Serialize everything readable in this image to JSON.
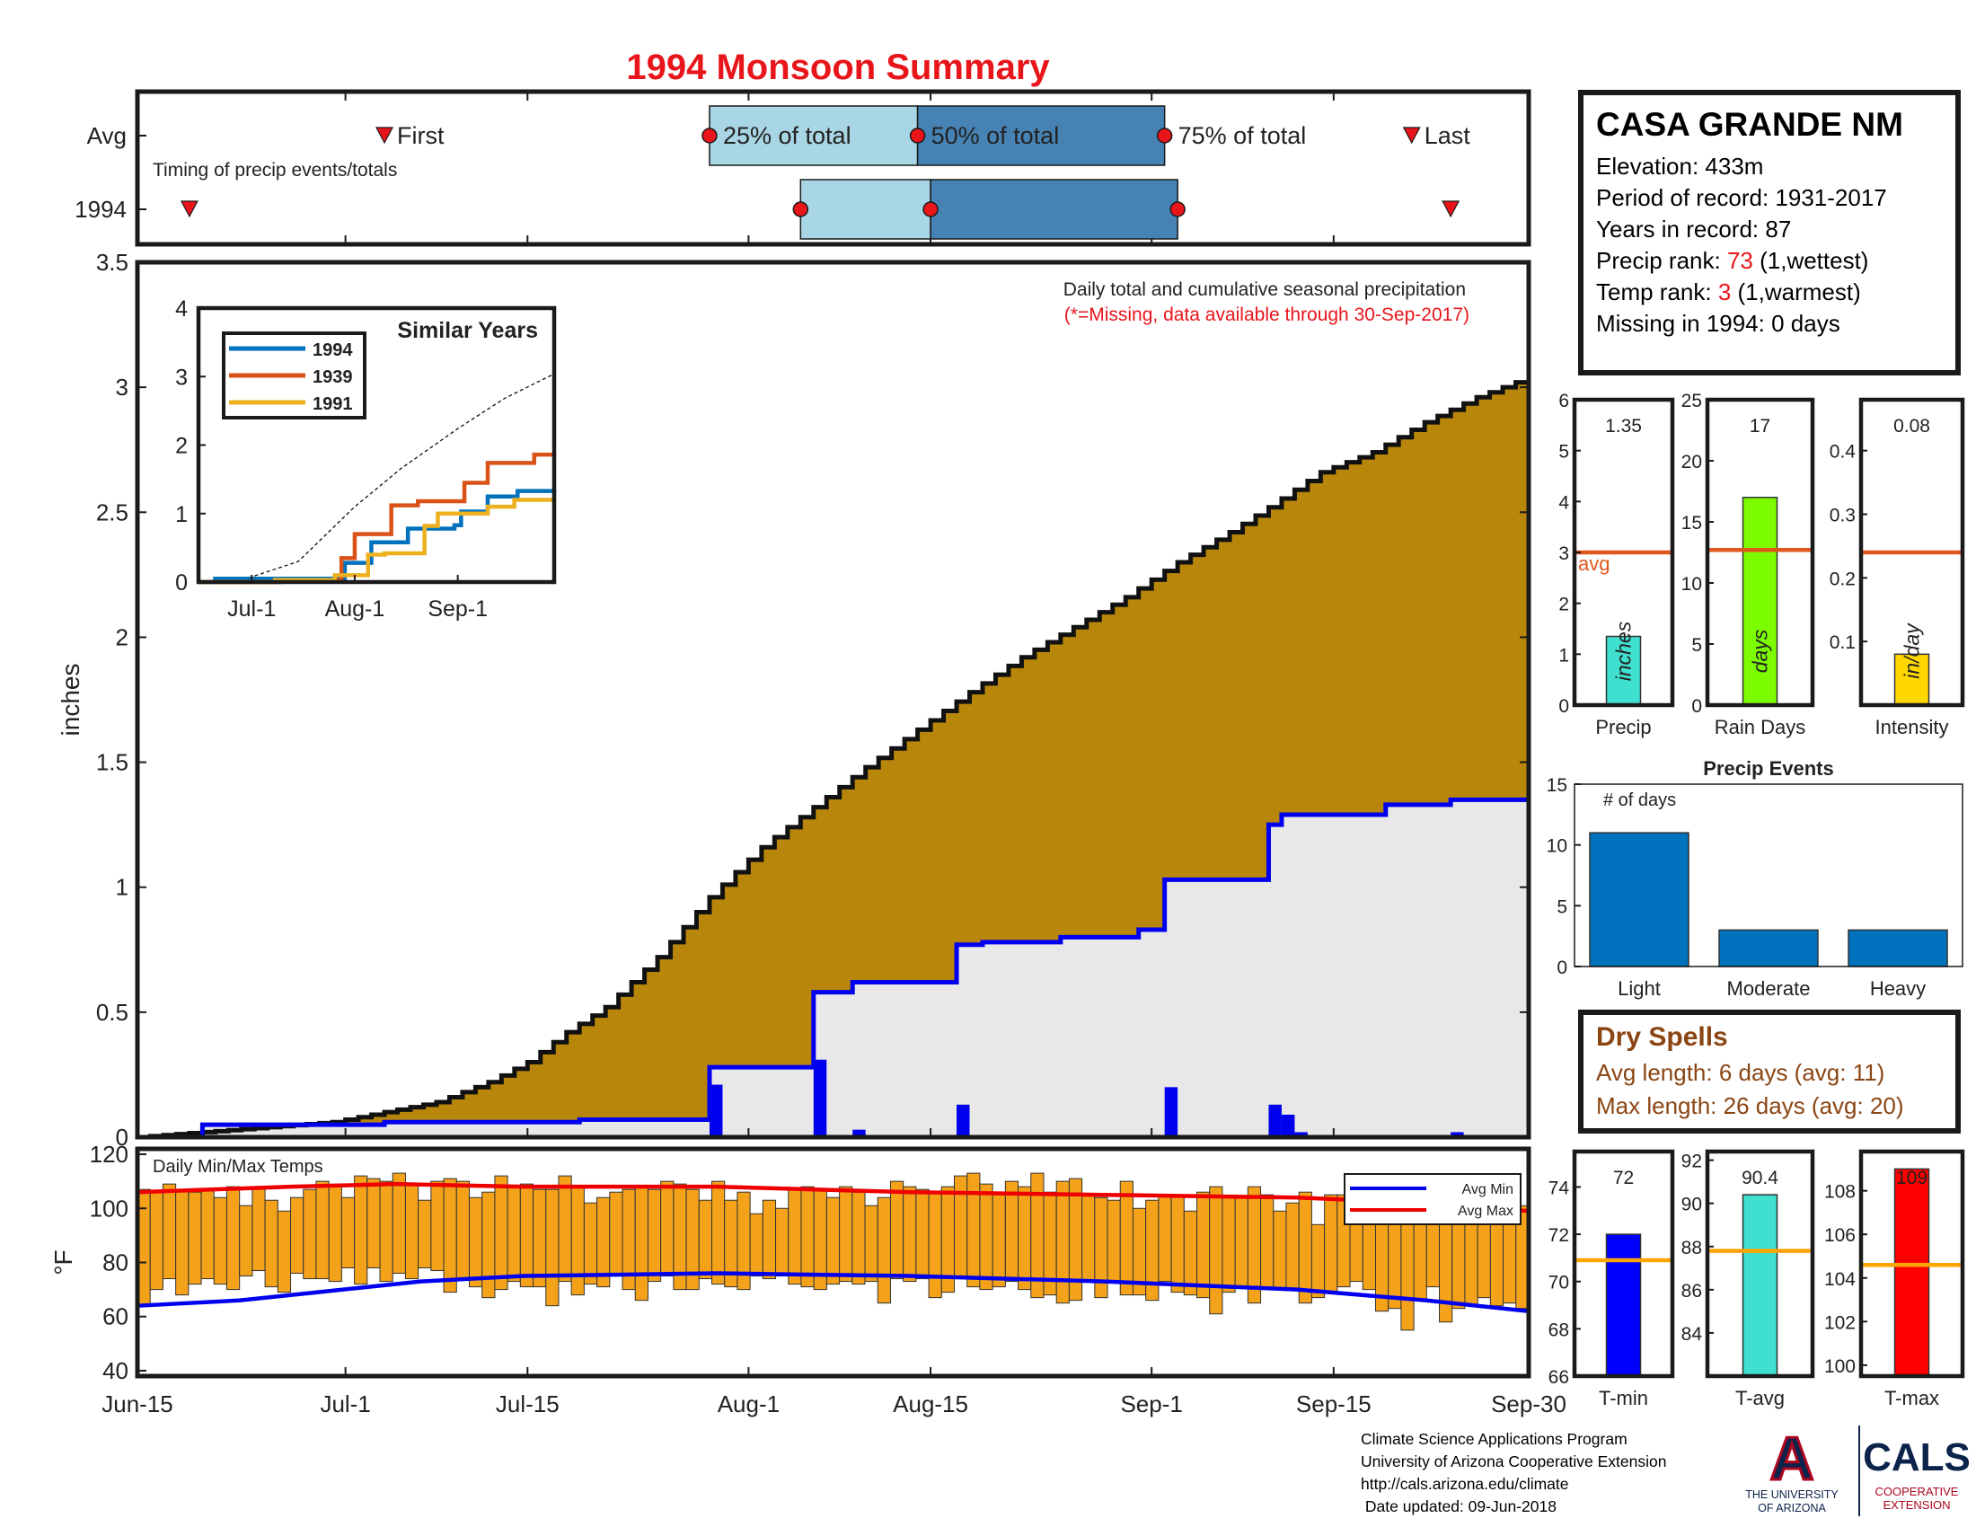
{
  "title": "1994 Monsoon Summary",
  "timing": {
    "row_labels": [
      "Avg",
      "1994"
    ],
    "subtitle": "Timing of precip events/totals",
    "first_label": "First",
    "last_label": "Last",
    "q25_label": "25% of total",
    "q50_label": "50% of total",
    "q75_label": "75% of total",
    "avg": {
      "first": "2004-07-04",
      "q25": "2004-07-29",
      "q50": "2004-08-14",
      "q75": "2004-09-02",
      "last": "2004-09-21"
    },
    "year": {
      "first": "2004-06-19",
      "q25": "2004-08-05",
      "q50": "2004-08-15",
      "q75": "2004-09-03",
      "last": "2004-09-24"
    },
    "color_early": "#a9d6e5",
    "color_late": "#4682b4",
    "marker_color": "#e8151b"
  },
  "site": {
    "name": "CASA GRANDE NM",
    "elevation": "Elevation: 433m",
    "period": "Period of record: 1931-2017",
    "years": "Years in record: 87",
    "precip_rank_prefix": "Precip rank: ",
    "precip_rank": "73",
    "precip_rank_suffix": " (1,wettest)",
    "temp_rank_prefix": "Temp rank: ",
    "temp_rank": "3",
    "temp_rank_suffix": " (1,warmest)",
    "missing": "Missing in 1994: 0 days"
  },
  "dry_spells": {
    "title": "Dry Spells",
    "avg": "Avg length: 6 days (avg: 11)",
    "max": "Max length: 26 days (avg: 20)"
  },
  "footer": {
    "line1": "Climate Science Applications Program",
    "line2": "University of Arizona Cooperative Extension",
    "line3": "http://cals.arizona.edu/climate",
    "line4": " Date updated: 09-Jun-2018"
  },
  "logos": {
    "ua_letter": "A",
    "ua_line1": "THE UNIVERSITY",
    "ua_line2": "OF ARIZONA",
    "cals_name": "CALS",
    "cals_line1": "COOPERATIVE",
    "cals_line2": "EXTENSION"
  },
  "chart_data": [
    {
      "id": "precip",
      "type": "area",
      "title": "Daily total and cumulative seasonal precipitation",
      "note": "(*=Missing, data available through 30-Sep-2017)",
      "ylabel": "inches",
      "ylim": [
        0,
        3.5
      ],
      "yticks": [
        0,
        0.5,
        1,
        1.5,
        2,
        2.5,
        3,
        3.5
      ],
      "xlim": [
        "2004-06-15",
        "2004-09-30"
      ],
      "xticks": [
        "2004-06-15",
        "2004-07-01",
        "2004-07-15",
        "2004-08-01",
        "2004-08-15",
        "2004-09-01",
        "2004-09-15",
        "2004-09-30"
      ],
      "xtick_labels": [
        "Jun-15",
        "Jul-1",
        "Jul-15",
        "Aug-1",
        "Aug-15",
        "Sep-1",
        "Sep-15",
        "Sep-30"
      ],
      "avg_cumulative": [
        [
          "06-15",
          0.0
        ],
        [
          "06-20",
          0.02
        ],
        [
          "06-25",
          0.04
        ],
        [
          "06-30",
          0.06
        ],
        [
          "07-04",
          0.1
        ],
        [
          "07-08",
          0.14
        ],
        [
          "07-12",
          0.22
        ],
        [
          "07-15",
          0.3
        ],
        [
          "07-18",
          0.42
        ],
        [
          "07-21",
          0.52
        ],
        [
          "07-25",
          0.72
        ],
        [
          "07-29",
          0.96
        ],
        [
          "08-02",
          1.16
        ],
        [
          "08-06",
          1.32
        ],
        [
          "08-10",
          1.48
        ],
        [
          "08-14",
          1.63
        ],
        [
          "08-18",
          1.78
        ],
        [
          "08-22",
          1.92
        ],
        [
          "08-26",
          2.04
        ],
        [
          "08-30",
          2.16
        ],
        [
          "09-03",
          2.3
        ],
        [
          "09-07",
          2.42
        ],
        [
          "09-10",
          2.52
        ],
        [
          "09-14",
          2.66
        ],
        [
          "09-18",
          2.74
        ],
        [
          "09-22",
          2.86
        ],
        [
          "09-26",
          2.96
        ],
        [
          "09-30",
          3.04
        ]
      ],
      "series": [
        {
          "name": "1994",
          "color": "#0000ee",
          "cumulative_steps": [
            [
              "06-15",
              0.0
            ],
            [
              "06-20",
              0.05
            ],
            [
              "07-04",
              0.06
            ],
            [
              "07-19",
              0.07
            ],
            [
              "07-29",
              0.28
            ],
            [
              "08-06",
              0.58
            ],
            [
              "08-09",
              0.62
            ],
            [
              "08-17",
              0.77
            ],
            [
              "08-19",
              0.78
            ],
            [
              "08-25",
              0.8
            ],
            [
              "08-31",
              0.83
            ],
            [
              "09-02",
              1.03
            ],
            [
              "09-10",
              1.25
            ],
            [
              "09-11",
              1.29
            ],
            [
              "09-19",
              1.33
            ],
            [
              "09-24",
              1.35
            ]
          ]
        },
        {
          "name": "Daily precip",
          "color": "#0000ee",
          "daily": [
            [
              "07-29",
              0.21
            ],
            [
              "08-06",
              0.31
            ],
            [
              "08-09",
              0.03
            ],
            [
              "08-17",
              0.13
            ],
            [
              "09-02",
              0.2
            ],
            [
              "09-10",
              0.13
            ],
            [
              "09-11",
              0.09
            ],
            [
              "09-12",
              0.02
            ],
            [
              "09-24",
              0.02
            ]
          ]
        }
      ]
    },
    {
      "id": "similar",
      "type": "line",
      "title": "Similar Years",
      "ylim": [
        0,
        4
      ],
      "yticks": [
        0,
        1,
        2,
        3,
        4
      ],
      "xtick_labels": [
        "Jul-1",
        "Aug-1",
        "Sep-1"
      ],
      "series": [
        {
          "name": "1994",
          "color": "#0072bd",
          "values": [
            [
              "06-15",
              0.0
            ],
            [
              "06-20",
              0.05
            ],
            [
              "07-29",
              0.28
            ],
            [
              "08-06",
              0.58
            ],
            [
              "08-17",
              0.78
            ],
            [
              "08-31",
              0.83
            ],
            [
              "09-02",
              1.03
            ],
            [
              "09-10",
              1.25
            ],
            [
              "09-19",
              1.33
            ],
            [
              "09-30",
              1.35
            ]
          ]
        },
        {
          "name": "1939",
          "color": "#d95319",
          "values": [
            [
              "06-15",
              0.0
            ],
            [
              "07-10",
              0.03
            ],
            [
              "07-28",
              0.35
            ],
            [
              "08-01",
              0.7
            ],
            [
              "08-12",
              1.12
            ],
            [
              "08-20",
              1.18
            ],
            [
              "09-03",
              1.45
            ],
            [
              "09-10",
              1.74
            ],
            [
              "09-24",
              1.86
            ],
            [
              "09-30",
              1.88
            ]
          ]
        },
        {
          "name": "1991",
          "color": "#edb120",
          "values": [
            [
              "06-15",
              0.0
            ],
            [
              "07-08",
              0.03
            ],
            [
              "07-26",
              0.1
            ],
            [
              "08-05",
              0.4
            ],
            [
              "08-10",
              0.42
            ],
            [
              "08-22",
              0.82
            ],
            [
              "08-26",
              1.0
            ],
            [
              "09-10",
              1.1
            ],
            [
              "09-18",
              1.2
            ],
            [
              "09-30",
              1.22
            ]
          ]
        }
      ],
      "avg_line": [
        [
          "06-15",
          0.0
        ],
        [
          "06-30",
          0.06
        ],
        [
          "07-15",
          0.3
        ],
        [
          "08-01",
          1.1
        ],
        [
          "08-15",
          1.66
        ],
        [
          "09-01",
          2.24
        ],
        [
          "09-15",
          2.68
        ],
        [
          "09-30",
          3.04
        ]
      ]
    },
    {
      "id": "temps",
      "type": "bar",
      "title": "Daily Min/Max Temps",
      "ylabel": "°F",
      "ylim": [
        38,
        122
      ],
      "yticks": [
        40,
        60,
        80,
        100,
        120
      ],
      "bar_color": "#f5a21b",
      "legend": [
        {
          "name": "Avg Min",
          "color": "#0000ee"
        },
        {
          "name": "Avg Max",
          "color": "#ee0000"
        }
      ],
      "daily_max": [
        107,
        106,
        109,
        107,
        106,
        107,
        104,
        108,
        101,
        108,
        103,
        99,
        104,
        107,
        110,
        108,
        104,
        112,
        111,
        110,
        113,
        109,
        103,
        110,
        111,
        110,
        104,
        106,
        112,
        108,
        109,
        107,
        107,
        112,
        108,
        102,
        104,
        106,
        107,
        108,
        107,
        110,
        109,
        107,
        103,
        110,
        103,
        106,
        98,
        103,
        100,
        107,
        108,
        107,
        104,
        108,
        106,
        101,
        104,
        110,
        108,
        107,
        106,
        108,
        112,
        113,
        109,
        105,
        110,
        108,
        113,
        106,
        110,
        111,
        105,
        104,
        103,
        110,
        100,
        103,
        105,
        105,
        99,
        106,
        108,
        104,
        104,
        108,
        105,
        99,
        102,
        106,
        94,
        105,
        105,
        102,
        106,
        109,
        104,
        111,
        111,
        108,
        98,
        104,
        99,
        103,
        106,
        101,
        101
      ],
      "daily_min": [
        64,
        70,
        74,
        68,
        72,
        74,
        72,
        70,
        75,
        77,
        71,
        69,
        76,
        74,
        74,
        73,
        78,
        72,
        78,
        73,
        76,
        74,
        78,
        77,
        69,
        74,
        71,
        67,
        70,
        73,
        71,
        71,
        64,
        73,
        68,
        72,
        71,
        75,
        70,
        66,
        73,
        75,
        70,
        70,
        74,
        72,
        71,
        70,
        75,
        74,
        75,
        72,
        71,
        70,
        72,
        73,
        72,
        73,
        65,
        74,
        73,
        74,
        67,
        69,
        74,
        71,
        70,
        71,
        73,
        70,
        67,
        68,
        65,
        66,
        73,
        67,
        73,
        68,
        68,
        66,
        73,
        69,
        68,
        67,
        61,
        69,
        71,
        65,
        70,
        70,
        70,
        65,
        67,
        69,
        71,
        73,
        70,
        62,
        63,
        55,
        66,
        71,
        58,
        63,
        64,
        67,
        64,
        65,
        63
      ],
      "avg_max": [
        [
          0,
          106
        ],
        [
          6,
          107
        ],
        [
          12,
          108
        ],
        [
          20,
          109
        ],
        [
          30,
          108
        ],
        [
          45,
          108
        ],
        [
          60,
          106
        ],
        [
          75,
          105
        ],
        [
          90,
          104
        ],
        [
          100,
          102
        ],
        [
          108,
          99
        ]
      ],
      "avg_min": [
        [
          0,
          64
        ],
        [
          8,
          66
        ],
        [
          14,
          69
        ],
        [
          22,
          73
        ],
        [
          30,
          75
        ],
        [
          45,
          76
        ],
        [
          60,
          75
        ],
        [
          75,
          73
        ],
        [
          90,
          70
        ],
        [
          100,
          66
        ],
        [
          108,
          62
        ]
      ]
    },
    {
      "id": "season_bars",
      "type": "bar",
      "panels": [
        {
          "label": "Precip",
          "value": 1.35,
          "value_label": "1.35",
          "unit": "inches",
          "avg": 3.0,
          "avg_label": "avg",
          "ylim": [
            0,
            6
          ],
          "yticks": [
            0,
            1,
            2,
            3,
            4,
            5,
            6
          ],
          "color": "#40e0d0"
        },
        {
          "label": "Rain Days",
          "value": 17,
          "value_label": "17",
          "unit": "days",
          "avg": 12.7,
          "ylim": [
            0,
            25
          ],
          "yticks": [
            0,
            5,
            10,
            15,
            20,
            25
          ],
          "color": "#7cfc00"
        },
        {
          "label": "Intensity",
          "value": 0.08,
          "value_label": "0.08",
          "unit": "in/day",
          "avg": 0.24,
          "ylim": [
            0,
            0.48
          ],
          "yticks": [
            0.1,
            0.2,
            0.3,
            0.4
          ],
          "ytick_labels": [
            "0.1",
            "0.2",
            "0.3",
            "0.4"
          ],
          "color": "#ffd700"
        }
      ],
      "avg_color": "#e0571e"
    },
    {
      "id": "events",
      "type": "bar",
      "title": "Precip Events",
      "ylabel_inside": "# of days",
      "categories": [
        "Light",
        "Moderate",
        "Heavy"
      ],
      "values": [
        11,
        3,
        3
      ],
      "ylim": [
        0,
        15
      ],
      "yticks": [
        0,
        5,
        10,
        15
      ],
      "color": "#0072bd"
    },
    {
      "id": "temp_bars",
      "type": "bar",
      "panels": [
        {
          "label": "T-min",
          "value": 72,
          "value_label": "72",
          "avg": 70.9,
          "ylim": [
            66,
            75.5
          ],
          "yticks": [
            66,
            68,
            70,
            72,
            74
          ],
          "color": "#0000ff"
        },
        {
          "label": "T-avg",
          "value": 90.4,
          "value_label": "90.4",
          "avg": 87.8,
          "ylim": [
            82,
            92.4
          ],
          "yticks": [
            84,
            86,
            88,
            90,
            92
          ],
          "color": "#40e0d0"
        },
        {
          "label": "T-max",
          "value": 109,
          "value_label": "109",
          "avg": 104.6,
          "ylim": [
            99.5,
            109.8
          ],
          "yticks": [
            100,
            102,
            104,
            106,
            108
          ],
          "color": "#ff0000"
        }
      ],
      "avg_color": "#ffa500"
    }
  ]
}
